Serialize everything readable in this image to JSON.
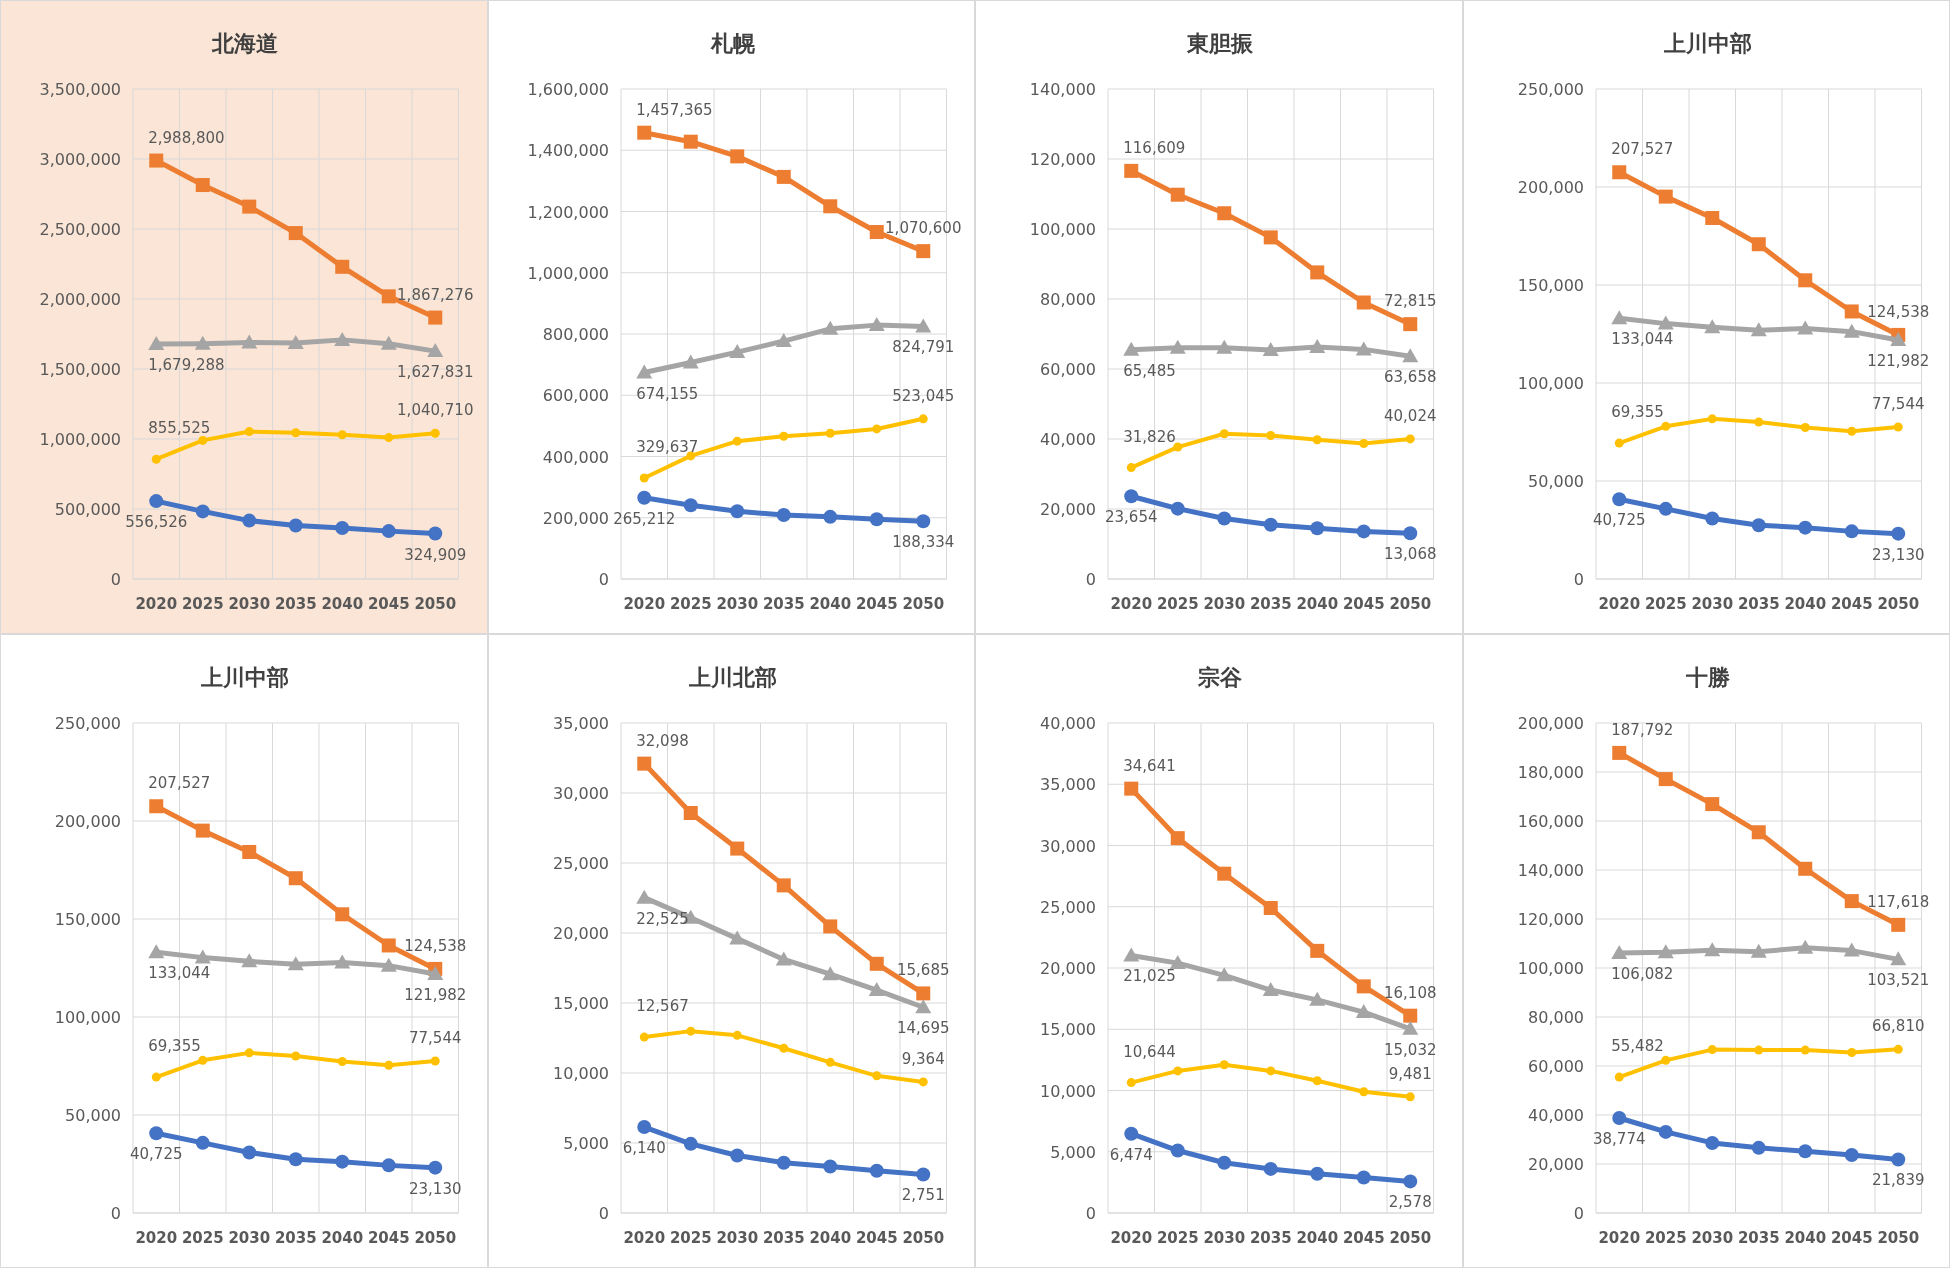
{
  "chart_data": [
    {
      "type": "line",
      "title": "北海道",
      "categories": [
        "2020",
        "2025",
        "2030",
        "2035",
        "2040",
        "2045",
        "2050"
      ],
      "ylim": [
        0,
        3500000
      ],
      "yticks": [
        {
          "value": 0,
          "label": "0"
        },
        {
          "value": 500000,
          "label": "500,000"
        },
        {
          "value": 1000000,
          "label": "1,000,000"
        },
        {
          "value": 1500000,
          "label": "1,500,000"
        },
        {
          "value": 2000000,
          "label": "2,000,000"
        },
        {
          "value": 2500000,
          "label": "2,500,000"
        },
        {
          "value": 3000000,
          "label": "3,000,000"
        },
        {
          "value": 3500000,
          "label": "3,500,000"
        }
      ],
      "grid": true,
      "series": [
        {
          "color": "#ed7d31",
          "marker": "square",
          "values": [
            2988800,
            2814000,
            2660000,
            2471000,
            2230000,
            2019000,
            1867276
          ],
          "value_labels": [
            "2,988,800",
            null,
            null,
            null,
            null,
            null,
            "1,867,276"
          ]
        },
        {
          "color": "#a5a5a5",
          "marker": "triangle",
          "values": [
            1679288,
            1681000,
            1690000,
            1685000,
            1708000,
            1680000,
            1627831
          ],
          "value_labels": [
            "1,679,288",
            null,
            null,
            null,
            null,
            null,
            "1,627,831"
          ]
        },
        {
          "color": "#ffc000",
          "marker": "circle",
          "values": [
            855525,
            990000,
            1053000,
            1045000,
            1030000,
            1010000,
            1040710
          ],
          "value_labels": [
            "855,525",
            null,
            null,
            null,
            null,
            null,
            "1,040,710"
          ]
        },
        {
          "color": "#4472c4",
          "marker": "circle",
          "values": [
            556526,
            483000,
            417000,
            382000,
            364000,
            342000,
            324909
          ],
          "value_labels": [
            "556,526",
            null,
            null,
            null,
            null,
            null,
            "324,909"
          ]
        }
      ]
    },
    {
      "type": "line",
      "title": "札幌",
      "categories": [
        "2020",
        "2025",
        "2030",
        "2035",
        "2040",
        "2045",
        "2050"
      ],
      "ylim": [
        0,
        1600000
      ],
      "yticks": [
        {
          "value": 0,
          "label": "0"
        },
        {
          "value": 200000,
          "label": "200,000"
        },
        {
          "value": 400000,
          "label": "400,000"
        },
        {
          "value": 600000,
          "label": "600,000"
        },
        {
          "value": 800000,
          "label": "800,000"
        },
        {
          "value": 1000000,
          "label": "1,000,000"
        },
        {
          "value": 1200000,
          "label": "1,200,000"
        },
        {
          "value": 1400000,
          "label": "1,400,000"
        },
        {
          "value": 1600000,
          "label": "1,600,000"
        }
      ],
      "grid": true,
      "series": [
        {
          "color": "#ed7d31",
          "marker": "square",
          "values": [
            1457365,
            1428000,
            1380000,
            1313000,
            1217000,
            1133000,
            1070600
          ],
          "value_labels": [
            "1,457,365",
            null,
            null,
            null,
            null,
            null,
            "1,070,600"
          ]
        },
        {
          "color": "#a5a5a5",
          "marker": "triangle",
          "values": [
            674155,
            707000,
            741000,
            777000,
            817000,
            829000,
            824791
          ],
          "value_labels": [
            "674,155",
            null,
            null,
            null,
            null,
            null,
            "824,791"
          ]
        },
        {
          "color": "#ffc000",
          "marker": "circle",
          "values": [
            329637,
            402000,
            450000,
            466000,
            476000,
            490000,
            523045
          ],
          "value_labels": [
            "329,637",
            null,
            null,
            null,
            null,
            null,
            "523,045"
          ]
        },
        {
          "color": "#4472c4",
          "marker": "circle",
          "values": [
            265212,
            241000,
            221000,
            209000,
            203000,
            195000,
            188334
          ],
          "value_labels": [
            "265,212",
            null,
            null,
            null,
            null,
            null,
            "188,334"
          ]
        }
      ]
    },
    {
      "type": "line",
      "title": "東胆振",
      "categories": [
        "2020",
        "2025",
        "2030",
        "2035",
        "2040",
        "2045",
        "2050"
      ],
      "ylim": [
        0,
        140000
      ],
      "yticks": [
        {
          "value": 0,
          "label": "0"
        },
        {
          "value": 20000,
          "label": "20,000"
        },
        {
          "value": 40000,
          "label": "40,000"
        },
        {
          "value": 60000,
          "label": "60,000"
        },
        {
          "value": 80000,
          "label": "80,000"
        },
        {
          "value": 100000,
          "label": "100,000"
        },
        {
          "value": 120000,
          "label": "120,000"
        },
        {
          "value": 140000,
          "label": "140,000"
        }
      ],
      "grid": true,
      "series": [
        {
          "color": "#ed7d31",
          "marker": "square",
          "values": [
            116609,
            109800,
            104500,
            97600,
            87600,
            79000,
            72815
          ],
          "value_labels": [
            "116,609",
            null,
            null,
            null,
            null,
            null,
            "72,815"
          ]
        },
        {
          "color": "#a5a5a5",
          "marker": "triangle",
          "values": [
            65485,
            66100,
            66100,
            65400,
            66300,
            65600,
            63658
          ],
          "value_labels": [
            "65,485",
            null,
            null,
            null,
            null,
            null,
            "63,658"
          ]
        },
        {
          "color": "#ffc000",
          "marker": "circle",
          "values": [
            31826,
            37700,
            41500,
            41000,
            39800,
            38700,
            40024
          ],
          "value_labels": [
            "31,826",
            null,
            null,
            null,
            null,
            null,
            "40,024"
          ]
        },
        {
          "color": "#4472c4",
          "marker": "circle",
          "values": [
            23654,
            20100,
            17300,
            15500,
            14500,
            13600,
            13068
          ],
          "value_labels": [
            "23,654",
            null,
            null,
            null,
            null,
            null,
            "13,068"
          ]
        }
      ]
    },
    {
      "type": "line",
      "title": "上川中部",
      "categories": [
        "2020",
        "2025",
        "2030",
        "2035",
        "2040",
        "2045",
        "2050"
      ],
      "ylim": [
        0,
        250000
      ],
      "yticks": [
        0,
        {
          "value": 50000,
          "label": "50,000"
        },
        {
          "value": 100000,
          "label": "100,000"
        },
        {
          "value": 150000,
          "label": "150,000"
        },
        {
          "value": 200000,
          "label": "200,000"
        },
        {
          "value": 250000,
          "label": "250,000"
        }
      ],
      "grid": true,
      "series": [
        {
          "color": "#ed7d31",
          "marker": "square",
          "values": [
            207527,
            195100,
            184200,
            170800,
            152400,
            136500,
            124538
          ],
          "value_labels": [
            "207,527",
            null,
            null,
            null,
            null,
            null,
            "124,538"
          ]
        },
        {
          "color": "#a5a5a5",
          "marker": "triangle",
          "values": [
            133044,
            130300,
            128400,
            126900,
            127800,
            126200,
            121982
          ],
          "value_labels": [
            "133,044",
            null,
            null,
            null,
            null,
            null,
            "121,982"
          ]
        },
        {
          "color": "#ffc000",
          "marker": "circle",
          "values": [
            69355,
            77900,
            81700,
            80100,
            77300,
            75400,
            77544
          ],
          "value_labels": [
            "69,355",
            null,
            null,
            null,
            null,
            null,
            "77,544"
          ]
        },
        {
          "color": "#4472c4",
          "marker": "circle",
          "values": [
            40725,
            35800,
            30900,
            27400,
            26200,
            24300,
            23130
          ],
          "value_labels": [
            "40,725",
            null,
            null,
            null,
            null,
            null,
            "23,130"
          ]
        }
      ]
    },
    {
      "type": "line",
      "title": "上川中部",
      "categories": [
        "2020",
        "2025",
        "2030",
        "2035",
        "2040",
        "2045",
        "2050"
      ],
      "ylim": [
        0,
        250000
      ],
      "yticks": [
        0,
        {
          "value": 50000,
          "label": "50,000"
        },
        {
          "value": 100000,
          "label": "100,000"
        },
        {
          "value": 150000,
          "label": "150,000"
        },
        {
          "value": 200000,
          "label": "200,000"
        },
        {
          "value": 250000,
          "label": "250,000"
        }
      ],
      "grid": true,
      "series": [
        {
          "color": "#ed7d31",
          "marker": "square",
          "values": [
            207527,
            195100,
            184200,
            170800,
            152400,
            136500,
            124538
          ],
          "value_labels": [
            "207,527",
            null,
            null,
            null,
            null,
            null,
            "124,538"
          ]
        },
        {
          "color": "#a5a5a5",
          "marker": "triangle",
          "values": [
            133044,
            130300,
            128400,
            126900,
            127800,
            126200,
            121982
          ],
          "value_labels": [
            "133,044",
            null,
            null,
            null,
            null,
            null,
            "121,982"
          ]
        },
        {
          "color": "#ffc000",
          "marker": "circle",
          "values": [
            69355,
            77900,
            81700,
            80100,
            77300,
            75400,
            77544
          ],
          "value_labels": [
            "69,355",
            null,
            null,
            null,
            null,
            null,
            "77,544"
          ]
        },
        {
          "color": "#4472c4",
          "marker": "circle",
          "values": [
            40725,
            35800,
            30900,
            27400,
            26200,
            24300,
            23130
          ],
          "value_labels": [
            "40,725",
            null,
            null,
            null,
            null,
            null,
            "23,130"
          ]
        }
      ]
    },
    {
      "type": "line",
      "title": "上川北部",
      "categories": [
        "2020",
        "2025",
        "2030",
        "2035",
        "2040",
        "2045",
        "2050"
      ],
      "ylim": [
        0,
        35000
      ],
      "yticks": [
        {
          "value": 0,
          "label": "0"
        },
        {
          "value": 5000,
          "label": "5,000"
        },
        {
          "value": 10000,
          "label": "10,000"
        },
        {
          "value": 15000,
          "label": "15,000"
        },
        {
          "value": 20000,
          "label": "20,000"
        },
        {
          "value": 25000,
          "label": "25,000"
        },
        {
          "value": 30000,
          "label": "30,000"
        },
        {
          "value": 35000,
          "label": "35,000"
        }
      ],
      "grid": true,
      "series": [
        {
          "color": "#ed7d31",
          "marker": "square",
          "values": [
            32098,
            28570,
            26030,
            23400,
            20470,
            17800,
            15685
          ],
          "value_labels": [
            "32,098",
            null,
            null,
            null,
            null,
            null,
            "15,685"
          ]
        },
        {
          "color": "#a5a5a5",
          "marker": "triangle",
          "values": [
            22525,
            21090,
            19600,
            18110,
            17060,
            15920,
            14695
          ],
          "value_labels": [
            "22,525",
            null,
            null,
            null,
            null,
            null,
            "14,695"
          ]
        },
        {
          "color": "#ffc000",
          "marker": "circle",
          "values": [
            12567,
            12990,
            12690,
            11770,
            10760,
            9800,
            9364
          ],
          "value_labels": [
            "12,567",
            null,
            null,
            null,
            null,
            null,
            "9,364"
          ]
        },
        {
          "color": "#4472c4",
          "marker": "circle",
          "values": [
            6140,
            4940,
            4110,
            3590,
            3320,
            3020,
            2751
          ],
          "value_labels": [
            "6,140",
            null,
            null,
            null,
            null,
            null,
            "2,751"
          ]
        }
      ]
    },
    {
      "type": "line",
      "title": "宗谷",
      "categories": [
        "2020",
        "2025",
        "2030",
        "2035",
        "2040",
        "2045",
        "2050"
      ],
      "ylim": [
        0,
        40000
      ],
      "yticks": [
        {
          "value": 0,
          "label": "0"
        },
        {
          "value": 5000,
          "label": "5,000"
        },
        {
          "value": 10000,
          "label": "10,000"
        },
        {
          "value": 15000,
          "label": "15,000"
        },
        {
          "value": 20000,
          "label": "20,000"
        },
        {
          "value": 25000,
          "label": "25,000"
        },
        {
          "value": 30000,
          "label": "30,000"
        },
        {
          "value": 35000,
          "label": "35,000"
        },
        {
          "value": 40000,
          "label": "40,000"
        }
      ],
      "grid": true,
      "series": [
        {
          "color": "#ed7d31",
          "marker": "square",
          "values": [
            34641,
            30600,
            27700,
            24900,
            21400,
            18500,
            16108
          ],
          "value_labels": [
            "34,641",
            null,
            null,
            null,
            null,
            null,
            "16,108"
          ]
        },
        {
          "color": "#a5a5a5",
          "marker": "triangle",
          "values": [
            21025,
            20400,
            19400,
            18200,
            17400,
            16400,
            15032
          ],
          "value_labels": [
            "21,025",
            null,
            null,
            null,
            null,
            null,
            "15,032"
          ]
        },
        {
          "color": "#ffc000",
          "marker": "circle",
          "values": [
            10644,
            11600,
            12100,
            11600,
            10800,
            9900,
            9481
          ],
          "value_labels": [
            "10,644",
            null,
            null,
            null,
            null,
            null,
            "9,481"
          ]
        },
        {
          "color": "#4472c4",
          "marker": "circle",
          "values": [
            6474,
            5100,
            4100,
            3600,
            3200,
            2900,
            2578
          ],
          "value_labels": [
            "6,474",
            null,
            null,
            null,
            null,
            null,
            "2,578"
          ]
        }
      ]
    },
    {
      "type": "line",
      "title": "十勝",
      "categories": [
        "2020",
        "2025",
        "2030",
        "2035",
        "2040",
        "2045",
        "2050"
      ],
      "ylim": [
        0,
        200000
      ],
      "yticks": [
        {
          "value": 0,
          "label": "0"
        },
        {
          "value": 20000,
          "label": "20,000"
        },
        {
          "value": 40000,
          "label": "40,000"
        },
        {
          "value": 60000,
          "label": "60,000"
        },
        {
          "value": 80000,
          "label": "80,000"
        },
        {
          "value": 100000,
          "label": "100,000"
        },
        {
          "value": 120000,
          "label": "120,000"
        },
        {
          "value": 140000,
          "label": "140,000"
        },
        {
          "value": 160000,
          "label": "160,000"
        },
        {
          "value": 180000,
          "label": "180,000"
        },
        {
          "value": 200000,
          "label": "200,000"
        }
      ],
      "grid": true,
      "series": [
        {
          "color": "#ed7d31",
          "marker": "square",
          "values": [
            187792,
            177100,
            166900,
            155400,
            140500,
            127300,
            117618
          ],
          "value_labels": [
            "187,792",
            null,
            null,
            null,
            null,
            null,
            "117,618"
          ]
        },
        {
          "color": "#a5a5a5",
          "marker": "triangle",
          "values": [
            106082,
            106400,
            107200,
            106600,
            108300,
            107100,
            103521
          ],
          "value_labels": [
            "106,082",
            null,
            null,
            null,
            null,
            null,
            "103,521"
          ]
        },
        {
          "color": "#ffc000",
          "marker": "circle",
          "values": [
            55482,
            62300,
            66700,
            66500,
            66500,
            65500,
            66810
          ],
          "value_labels": [
            "55,482",
            null,
            null,
            null,
            null,
            null,
            "66,810"
          ]
        },
        {
          "color": "#4472c4",
          "marker": "circle",
          "values": [
            38774,
            33100,
            28600,
            26600,
            25200,
            23700,
            21839
          ],
          "value_labels": [
            "38,774",
            null,
            null,
            null,
            null,
            null,
            "21,839"
          ]
        }
      ]
    }
  ]
}
